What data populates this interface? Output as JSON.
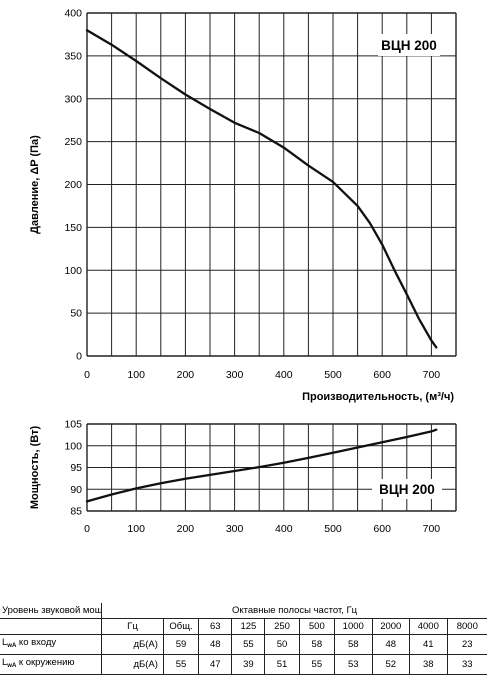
{
  "chart_data": [
    {
      "type": "line",
      "title": "ВЦН 200",
      "xlabel": "Производительность, (м³/ч)",
      "ylabel": "Давление, ΔP (Па)",
      "xlim": [
        0,
        750
      ],
      "ylim": [
        0,
        400
      ],
      "x_ticks": [
        "0",
        "100",
        "200",
        "300",
        "400",
        "500",
        "600",
        "700"
      ],
      "y_ticks": [
        "0",
        "50",
        "100",
        "150",
        "200",
        "250",
        "300",
        "350",
        "400"
      ],
      "grid": true,
      "series": [
        {
          "x": [
            0,
            50,
            100,
            150,
            200,
            250,
            300,
            350,
            400,
            450,
            500,
            550,
            575,
            600,
            625,
            650,
            675,
            700,
            710
          ],
          "y": [
            380,
            363,
            344,
            324,
            305,
            288,
            272,
            260,
            243,
            222,
            203,
            175,
            155,
            130,
            100,
            72,
            43,
            18,
            10
          ]
        }
      ]
    },
    {
      "type": "line",
      "title": "ВЦН 200",
      "xlabel": "",
      "ylabel": "Мощность, (Вт)",
      "xlim": [
        0,
        750
      ],
      "ylim": [
        85,
        105
      ],
      "x_ticks": [
        "0",
        "100",
        "200",
        "300",
        "400",
        "500",
        "600",
        "700"
      ],
      "y_ticks": [
        "85",
        "90",
        "95",
        "100",
        "105"
      ],
      "grid": true,
      "series": [
        {
          "x": [
            0,
            50,
            100,
            150,
            200,
            250,
            300,
            350,
            400,
            450,
            500,
            550,
            600,
            650,
            700,
            710
          ],
          "y": [
            87.2,
            88.8,
            90.2,
            91.4,
            92.4,
            93.3,
            94.2,
            95.1,
            96.1,
            97.2,
            98.4,
            99.6,
            100.8,
            102.0,
            103.3,
            103.7
          ]
        }
      ]
    }
  ],
  "sound_table": {
    "title_left": "Уровень звуковой мощности",
    "title_right": "Октавные полосы частот, Гц",
    "unit_hz": "Гц",
    "headers": [
      "Общ.",
      "63",
      "125",
      "250",
      "500",
      "1000",
      "2000",
      "4000",
      "8000"
    ],
    "rows": [
      {
        "label_main": "L",
        "label_sub": "wA",
        "label_rest": " ко входу",
        "unit": "дБ(А)",
        "values": [
          "59",
          "48",
          "55",
          "50",
          "58",
          "58",
          "48",
          "41",
          "23"
        ]
      },
      {
        "label_main": "L",
        "label_sub": "wA",
        "label_rest": " к окружению",
        "unit": "дБ(А)",
        "values": [
          "55",
          "47",
          "39",
          "51",
          "55",
          "53",
          "52",
          "38",
          "33"
        ]
      }
    ]
  },
  "colors": {
    "curve": "#111111",
    "grid": "#222222",
    "text": "#000000"
  }
}
